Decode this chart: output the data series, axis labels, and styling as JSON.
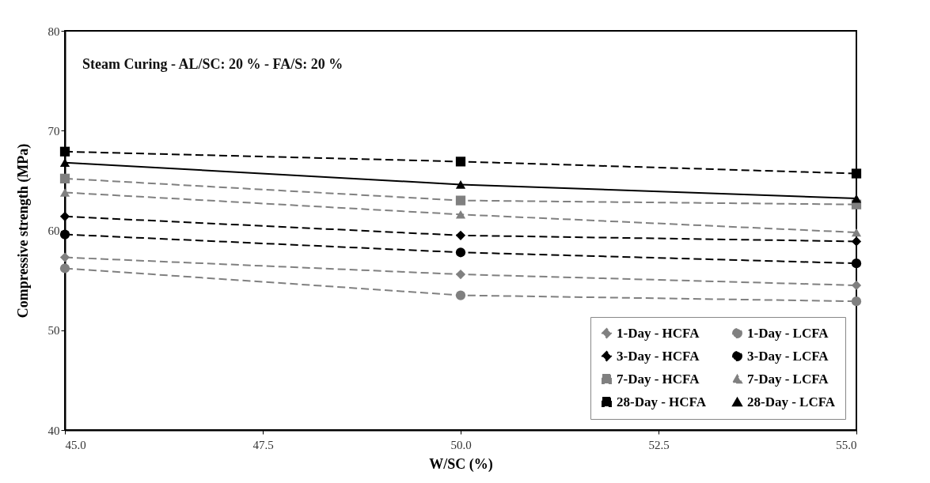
{
  "chart_data": {
    "type": "line",
    "xlabel": "W/SC (%)",
    "ylabel": "Compressive strength (MPa)",
    "annotations": [
      "Steam Curing - AL/SC: 20 % - FA/S: 20 %"
    ],
    "x": [
      45,
      50,
      55
    ],
    "xlim": [
      45,
      55
    ],
    "xticks": [
      {
        "value": 45,
        "label": "45.0"
      },
      {
        "value": 47.5,
        "label": "47.5"
      },
      {
        "value": 50,
        "label": "50.0"
      },
      {
        "value": 52.5,
        "label": "52.5"
      },
      {
        "value": 55,
        "label": "55.0"
      }
    ],
    "ylim": [
      40,
      80
    ],
    "yticks": [
      40,
      50,
      60,
      70,
      80
    ],
    "grid": false,
    "legend": "bottom right",
    "series": [
      {
        "name": "1-Day - HCFA",
        "color": "#808080",
        "marker": "diamond",
        "line_style": "dashed",
        "values": [
          57.3,
          55.6,
          54.5
        ]
      },
      {
        "name": "1-Day - LCFA",
        "color": "#808080",
        "marker": "circle",
        "line_style": "dashed",
        "values": [
          56.2,
          53.5,
          52.9
        ]
      },
      {
        "name": "3-Day - HCFA",
        "color": "#000000",
        "marker": "diamond",
        "line_style": "dashed",
        "values": [
          61.4,
          59.5,
          58.9
        ]
      },
      {
        "name": "3-Day - LCFA",
        "color": "#000000",
        "marker": "circle",
        "line_style": "dashed",
        "values": [
          59.6,
          57.8,
          56.7
        ]
      },
      {
        "name": "7-Day - HCFA",
        "color": "#808080",
        "marker": "square",
        "line_style": "dashed",
        "values": [
          65.2,
          63.0,
          62.6
        ]
      },
      {
        "name": "7-Day - LCFA",
        "color": "#808080",
        "marker": "triangle",
        "line_style": "dashed",
        "values": [
          63.8,
          61.6,
          59.8
        ]
      },
      {
        "name": "28-Day - HCFA",
        "color": "#000000",
        "marker": "square",
        "line_style": "dashed",
        "values": [
          67.9,
          66.9,
          65.7
        ]
      },
      {
        "name": "28-Day - LCFA",
        "color": "#000000",
        "marker": "triangle",
        "line_style": "solid",
        "values": [
          66.8,
          64.6,
          63.2
        ]
      }
    ]
  }
}
